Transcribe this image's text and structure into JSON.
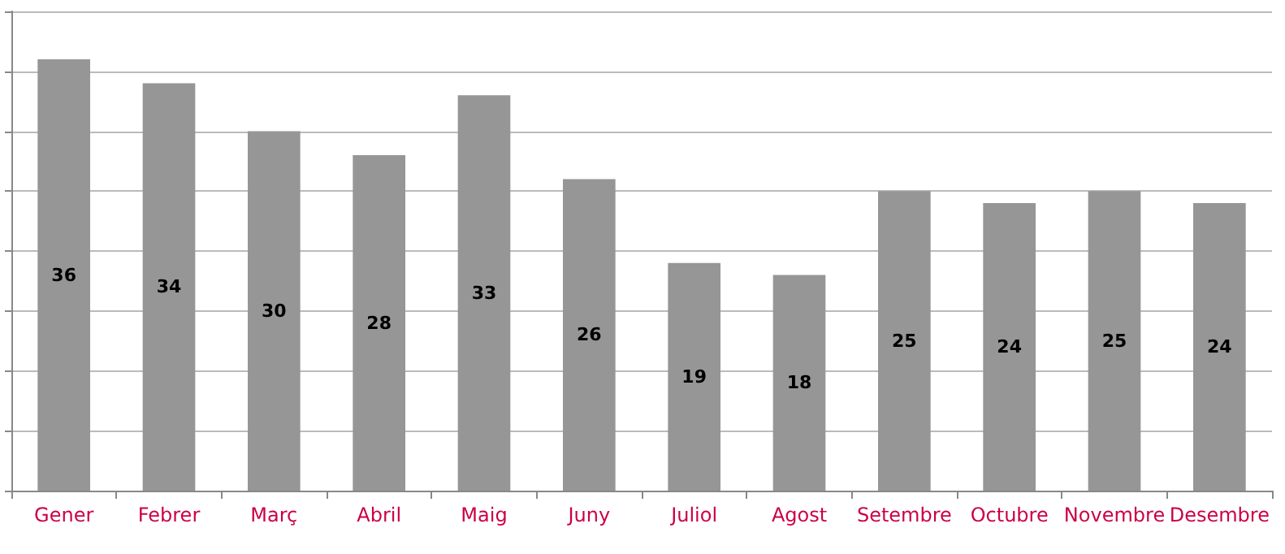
{
  "chart_data": {
    "type": "bar",
    "categories": [
      "Gener",
      "Febrer",
      "Març",
      "Abril",
      "Maig",
      "Juny",
      "Juliol",
      "Agost",
      "Setembre",
      "Octubre",
      "Novembre",
      "Desembre"
    ],
    "values": [
      36,
      34,
      30,
      28,
      33,
      26,
      19,
      18,
      25,
      24,
      25,
      24
    ],
    "color": "#969696",
    "data_labels": true,
    "ylim": [
      0,
      40
    ],
    "yticks": [
      {
        "value": 0,
        "label": null
      },
      {
        "value": 5,
        "label": null
      },
      {
        "value": 10,
        "label": null
      },
      {
        "value": 15,
        "label": null
      },
      {
        "value": 20,
        "label": null
      },
      {
        "value": 25,
        "label": null
      },
      {
        "value": 30,
        "label": null
      },
      {
        "value": 35,
        "label": null
      },
      {
        "value": 40,
        "label": null
      }
    ],
    "grid": "y",
    "tick_labels": "x"
  }
}
